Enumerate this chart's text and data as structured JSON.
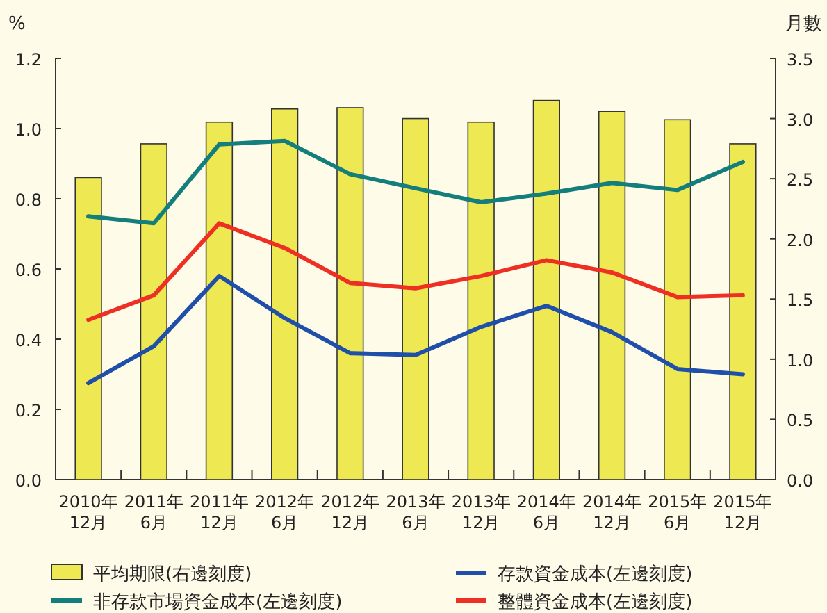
{
  "chart_data": {
    "type": "bar",
    "ylabel": "%",
    "y2label": "月數",
    "categories": [
      "2010年\n12月",
      "2011年\n6月",
      "2011年\n12月",
      "2012年\n6月",
      "2012年\n12月",
      "2013年\n6月",
      "2013年\n12月",
      "2014年\n6月",
      "2014年\n12月",
      "2015年\n6月",
      "2015年\n12月"
    ],
    "ylim": [
      0,
      1.2
    ],
    "yticks": [
      {
        "value": 0,
        "label": "0.0"
      },
      0.2,
      0.4,
      0.6,
      0.8,
      {
        "value": 1,
        "label": "1.0"
      },
      1.2
    ],
    "y2lim": [
      0,
      3.5
    ],
    "y2ticks": [
      {
        "value": 0,
        "label": "0.0"
      },
      0.5,
      {
        "value": 1,
        "label": "1.0"
      },
      1.5,
      {
        "value": 2,
        "label": "2.0"
      },
      2.5,
      {
        "value": 3,
        "label": "3.0"
      },
      3.5
    ],
    "legend": "bottom",
    "grid": false,
    "series": [
      {
        "name": "平均期限(右邊刻度)",
        "axis": "y2",
        "color": "#eee952",
        "values": [
          2.51,
          2.79,
          2.97,
          3.08,
          3.09,
          3.0,
          2.97,
          3.15,
          3.06,
          2.99,
          2.79
        ]
      },
      {
        "name": "存款資金成本(左邊刻度)",
        "type": "line",
        "color": "#1f4fa8",
        "values": [
          0.275,
          0.38,
          0.58,
          0.46,
          0.36,
          0.355,
          0.435,
          0.495,
          0.42,
          0.315,
          0.3
        ]
      },
      {
        "name": "非存款市場資金成本(左邊刻度)",
        "type": "line",
        "color": "#137e7b",
        "values": [
          0.75,
          0.73,
          0.955,
          0.965,
          0.87,
          0.83,
          0.79,
          0.815,
          0.845,
          0.825,
          0.905
        ]
      },
      {
        "name": "整體資金成本(左邊刻度)",
        "type": "line",
        "color": "#ee3024",
        "values": [
          0.455,
          0.525,
          0.73,
          0.66,
          0.56,
          0.545,
          0.58,
          0.625,
          0.59,
          0.52,
          0.525
        ]
      }
    ]
  }
}
